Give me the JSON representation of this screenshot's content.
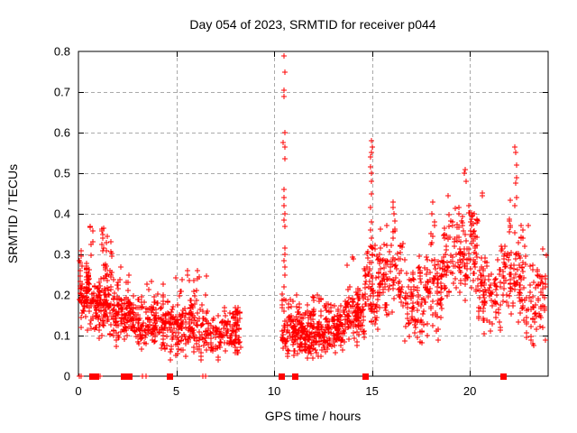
{
  "window": {
    "background": "#ffffff"
  },
  "chart_data": {
    "type": "scatter",
    "title": "Day 054 of 2023, SRMTID for receiver p044",
    "xlabel": "GPS time / hours",
    "ylabel": "SRMTID / TECUs",
    "xlim": [
      0,
      24
    ],
    "ylim": [
      0,
      0.8
    ],
    "xticks": [
      0,
      5,
      10,
      15,
      20
    ],
    "yticks": [
      0,
      0.1,
      0.2,
      0.3,
      0.4,
      0.5,
      0.6,
      0.7,
      0.8
    ],
    "grid": "dashed",
    "legend": "none",
    "marker": "plus",
    "colors": {
      "marker": "#ff0000",
      "grid": "#aaaaaa",
      "axis": "#000000",
      "text": "#000000"
    },
    "seed": 54,
    "scatter_bands": [
      {
        "t0": 0.02,
        "t1": 0.6,
        "n": 55,
        "mean": 0.2,
        "spread": 0.06,
        "min": 0.11,
        "max": 0.31
      },
      {
        "t0": 0.6,
        "t1": 1.8,
        "n": 110,
        "mean": 0.18,
        "spread": 0.065,
        "min": 0.08,
        "max": 0.37
      },
      {
        "t0": 1.8,
        "t1": 3.0,
        "n": 100,
        "mean": 0.15,
        "spread": 0.05,
        "min": 0.07,
        "max": 0.27
      },
      {
        "t0": 3.0,
        "t1": 4.2,
        "n": 90,
        "mean": 0.125,
        "spread": 0.045,
        "min": 0.05,
        "max": 0.24
      },
      {
        "t0": 4.2,
        "t1": 5.4,
        "n": 90,
        "mean": 0.12,
        "spread": 0.05,
        "min": 0.04,
        "max": 0.25
      },
      {
        "t0": 5.4,
        "t1": 6.6,
        "n": 85,
        "mean": 0.115,
        "spread": 0.05,
        "min": 0.04,
        "max": 0.26
      },
      {
        "t0": 6.6,
        "t1": 8.3,
        "n": 115,
        "mean": 0.1,
        "spread": 0.04,
        "min": 0.04,
        "max": 0.17
      },
      {
        "t0": 10.4,
        "t1": 11.2,
        "n": 65,
        "mean": 0.115,
        "spread": 0.05,
        "min": 0.05,
        "max": 0.22
      },
      {
        "t0": 11.2,
        "t1": 12.5,
        "n": 125,
        "mean": 0.105,
        "spread": 0.045,
        "min": 0.03,
        "max": 0.2
      },
      {
        "t0": 12.5,
        "t1": 13.6,
        "n": 100,
        "mean": 0.115,
        "spread": 0.045,
        "min": 0.05,
        "max": 0.22
      },
      {
        "t0": 13.6,
        "t1": 14.6,
        "n": 90,
        "mean": 0.15,
        "spread": 0.055,
        "min": 0.06,
        "max": 0.3
      },
      {
        "t0": 14.6,
        "t1": 15.4,
        "n": 55,
        "mean": 0.22,
        "spread": 0.07,
        "min": 0.08,
        "max": 0.34
      },
      {
        "t0": 15.4,
        "t1": 16.6,
        "n": 70,
        "mean": 0.24,
        "spread": 0.075,
        "min": 0.1,
        "max": 0.4
      },
      {
        "t0": 16.6,
        "t1": 17.6,
        "n": 60,
        "mean": 0.17,
        "spread": 0.06,
        "min": 0.08,
        "max": 0.3
      },
      {
        "t0": 17.6,
        "t1": 18.6,
        "n": 60,
        "mean": 0.2,
        "spread": 0.075,
        "min": 0.08,
        "max": 0.38
      },
      {
        "t0": 18.6,
        "t1": 19.6,
        "n": 62,
        "mean": 0.3,
        "spread": 0.08,
        "min": 0.12,
        "max": 0.46
      },
      {
        "t0": 19.6,
        "t1": 20.4,
        "n": 58,
        "mean": 0.3,
        "spread": 0.09,
        "min": 0.12,
        "max": 0.5
      },
      {
        "t0": 20.4,
        "t1": 21.6,
        "n": 65,
        "mean": 0.21,
        "spread": 0.08,
        "min": 0.08,
        "max": 0.46
      },
      {
        "t0": 21.6,
        "t1": 22.6,
        "n": 62,
        "mean": 0.24,
        "spread": 0.09,
        "min": 0.08,
        "max": 0.48
      },
      {
        "t0": 22.6,
        "t1": 23.9,
        "n": 72,
        "mean": 0.19,
        "spread": 0.09,
        "min": 0.06,
        "max": 0.42
      }
    ],
    "spike_columns": [
      {
        "t": 0.1,
        "values": [
          0.31,
          0.295,
          0.28,
          0.26
        ]
      },
      {
        "t": 1.25,
        "values": [
          0.365,
          0.35,
          0.34,
          0.325,
          0.31
        ]
      },
      {
        "t": 1.45,
        "values": [
          0.345,
          0.33,
          0.31
        ]
      },
      {
        "t": 5.62,
        "values": [
          0.26,
          0.25,
          0.235
        ]
      },
      {
        "t": 10.52,
        "values": [
          0.79,
          0.75,
          0.705,
          0.69,
          0.6,
          0.575,
          0.565,
          0.535,
          0.46,
          0.44,
          0.42,
          0.4,
          0.385,
          0.37,
          0.315,
          0.3,
          0.285,
          0.27,
          0.25,
          0.22,
          0.19,
          0.16
        ]
      },
      {
        "t": 14.95,
        "values": [
          0.58,
          0.565,
          0.55,
          0.54,
          0.515,
          0.5,
          0.48,
          0.45,
          0.415,
          0.38,
          0.36,
          0.34,
          0.32,
          0.3,
          0.28
        ]
      },
      {
        "t": 16.1,
        "values": [
          0.43,
          0.415,
          0.4,
          0.355,
          0.34
        ]
      },
      {
        "t": 18.05,
        "values": [
          0.43,
          0.4,
          0.345,
          0.33
        ]
      },
      {
        "t": 19.75,
        "values": [
          0.51,
          0.5,
          0.48
        ]
      },
      {
        "t": 22.35,
        "values": [
          0.565,
          0.55,
          0.52,
          0.49,
          0.475,
          0.44,
          0.42
        ]
      }
    ],
    "zero_row_squares": [
      0.69,
      0.88,
      2.3,
      2.58,
      4.65,
      10.35,
      11.07,
      14.65,
      21.7
    ],
    "zero_row_plusses": [
      0.03,
      0.12,
      1.02,
      1.1,
      3.27,
      3.46,
      6.36,
      6.5
    ]
  }
}
